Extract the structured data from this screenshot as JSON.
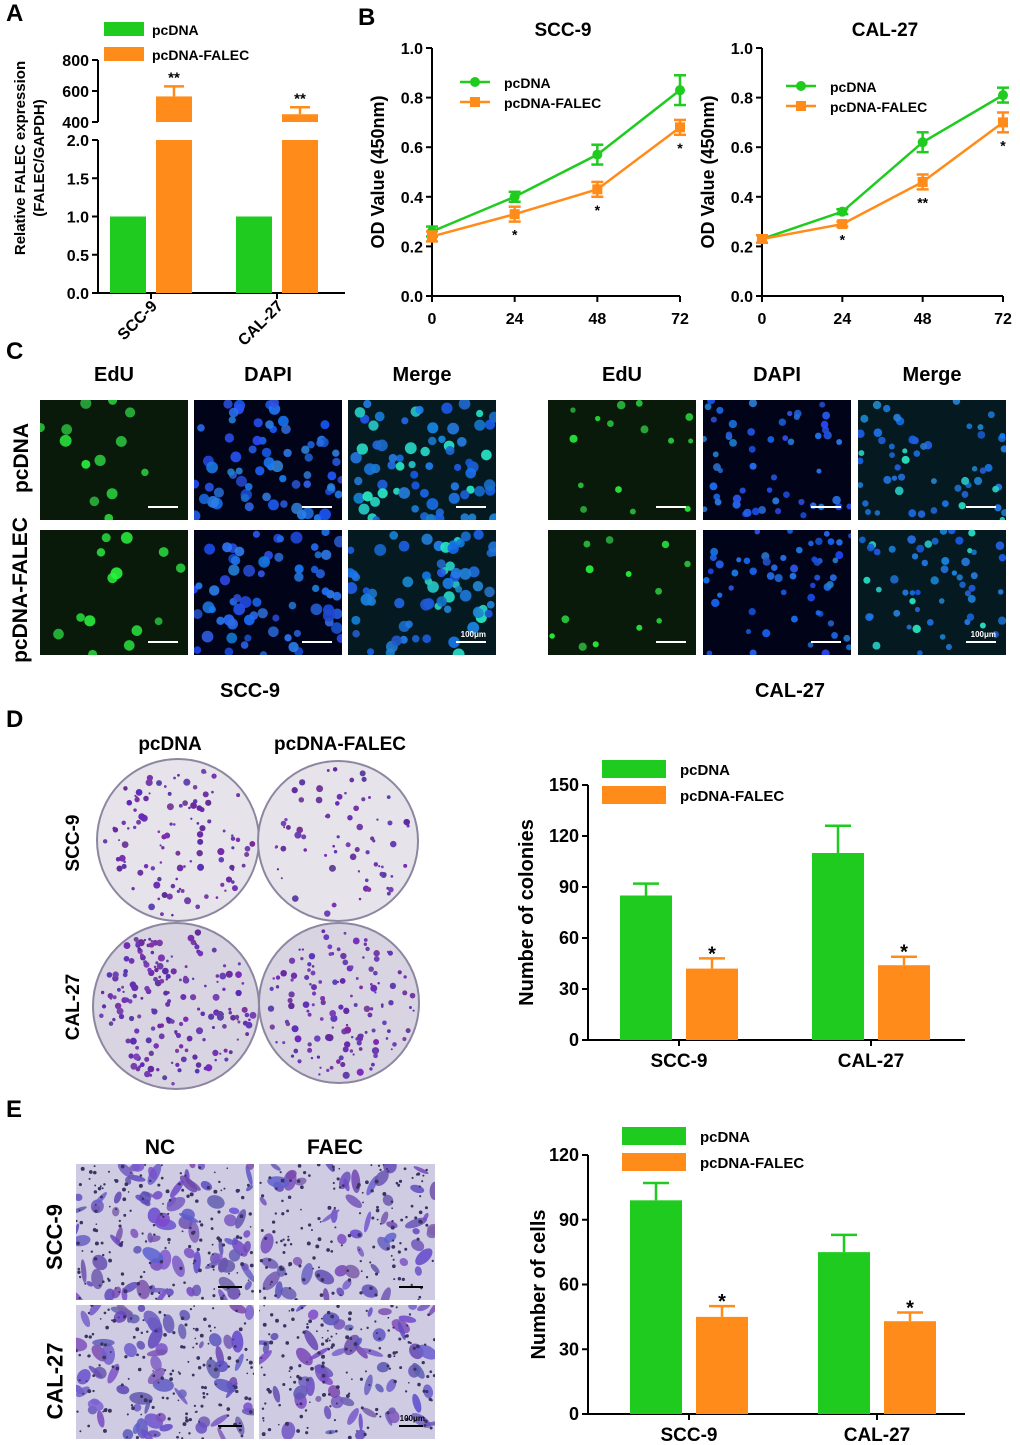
{
  "panels": {
    "A": "A",
    "B": "B",
    "C": "C",
    "D": "D",
    "E": "E"
  },
  "colors": {
    "pcDNA": "#1ecb1e",
    "pcDNA-FALEC": "#ff8c1a"
  },
  "panelC": {
    "SCC9": {
      "columns": [
        "EdU",
        "DAPI",
        "Merge"
      ],
      "rows": [
        "pcDNA",
        "pcDNA-FALEC"
      ],
      "caption": "SCC-9",
      "scale": "100μm"
    },
    "CAL27": {
      "columns": [
        "EdU",
        "DAPI",
        "Merge"
      ],
      "caption": "CAL-27",
      "scale": "100μm"
    }
  },
  "panelD_images": {
    "columns": [
      "pcDNA",
      "pcDNA-FALEC"
    ],
    "rows": [
      "SCC-9",
      "CAL-27"
    ]
  },
  "panelE_images": {
    "columns": [
      "NC",
      "FAEC"
    ],
    "rows": [
      "SCC-9",
      "CAL-27"
    ],
    "scale": "100μm"
  },
  "chart_data": [
    {
      "id": "A",
      "type": "bar",
      "ylabel": "Relative FALEC expression\n(FALEC/GAPDH)",
      "categories": [
        "SCC-9",
        "CAL-27"
      ],
      "series": [
        {
          "name": "pcDNA",
          "values": [
            1.0,
            1.0
          ]
        },
        {
          "name": "pcDNA-FALEC",
          "values": [
            565,
            450
          ],
          "errors": [
            65,
            45
          ]
        }
      ],
      "significance": [
        "**",
        "**"
      ],
      "axis_break": {
        "lower": [
          0,
          2.0
        ],
        "upper": [
          400,
          800
        ]
      },
      "yticks_lower": [
        "0.0",
        "0.5",
        "1.0",
        "1.5",
        "2.0"
      ],
      "yticks_upper": [
        "400",
        "600",
        "800"
      ]
    },
    {
      "id": "B-SCC9",
      "type": "line",
      "title": "SCC-9",
      "ylabel": "OD Value (450nm)",
      "x": [
        0,
        24,
        48,
        72
      ],
      "xticks": [
        "0",
        "24",
        "48",
        "72"
      ],
      "yticks": [
        "0.0",
        "0.2",
        "0.4",
        "0.6",
        "0.8",
        "1.0"
      ],
      "ylim": [
        0,
        1.0
      ],
      "series": [
        {
          "name": "pcDNA",
          "values": [
            0.26,
            0.4,
            0.57,
            0.83
          ],
          "errors": [
            0.02,
            0.02,
            0.04,
            0.06
          ]
        },
        {
          "name": "pcDNA-FALEC",
          "values": [
            0.24,
            0.33,
            0.43,
            0.68
          ],
          "errors": [
            0.02,
            0.03,
            0.03,
            0.03
          ]
        }
      ],
      "significance": [
        "",
        "*",
        "*",
        "*"
      ]
    },
    {
      "id": "B-CAL27",
      "type": "line",
      "title": "CAL-27",
      "ylabel": "OD Value (450nm)",
      "x": [
        0,
        24,
        48,
        72
      ],
      "xticks": [
        "0",
        "24",
        "48",
        "72"
      ],
      "yticks": [
        "0.0",
        "0.2",
        "0.4",
        "0.6",
        "0.8",
        "1.0"
      ],
      "ylim": [
        0,
        1.0
      ],
      "series": [
        {
          "name": "pcDNA",
          "values": [
            0.23,
            0.34,
            0.62,
            0.81
          ],
          "errors": [
            0.015,
            0.01,
            0.04,
            0.03
          ]
        },
        {
          "name": "pcDNA-FALEC",
          "values": [
            0.23,
            0.29,
            0.46,
            0.7
          ],
          "errors": [
            0.015,
            0.01,
            0.03,
            0.04
          ]
        }
      ],
      "significance": [
        "",
        "*",
        "**",
        "*"
      ]
    },
    {
      "id": "D",
      "type": "bar",
      "ylabel": "Number of colonies",
      "categories": [
        "SCC-9",
        "CAL-27"
      ],
      "yticks": [
        "0",
        "30",
        "60",
        "90",
        "120",
        "150"
      ],
      "ylim": [
        0,
        150
      ],
      "series": [
        {
          "name": "pcDNA",
          "values": [
            85,
            110
          ],
          "errors": [
            7,
            16
          ]
        },
        {
          "name": "pcDNA-FALEC",
          "values": [
            42,
            44
          ],
          "errors": [
            6,
            5
          ]
        }
      ],
      "significance": [
        "*",
        "*"
      ]
    },
    {
      "id": "E",
      "type": "bar",
      "ylabel": "Number of cells",
      "categories": [
        "SCC-9",
        "CAL-27"
      ],
      "yticks": [
        "0",
        "30",
        "60",
        "90",
        "120"
      ],
      "ylim": [
        0,
        120
      ],
      "series": [
        {
          "name": "pcDNA",
          "values": [
            99,
            75
          ],
          "errors": [
            8,
            8
          ]
        },
        {
          "name": "pcDNA-FALEC",
          "values": [
            45,
            43
          ],
          "errors": [
            5,
            4
          ]
        }
      ],
      "significance": [
        "*",
        "*"
      ]
    }
  ]
}
